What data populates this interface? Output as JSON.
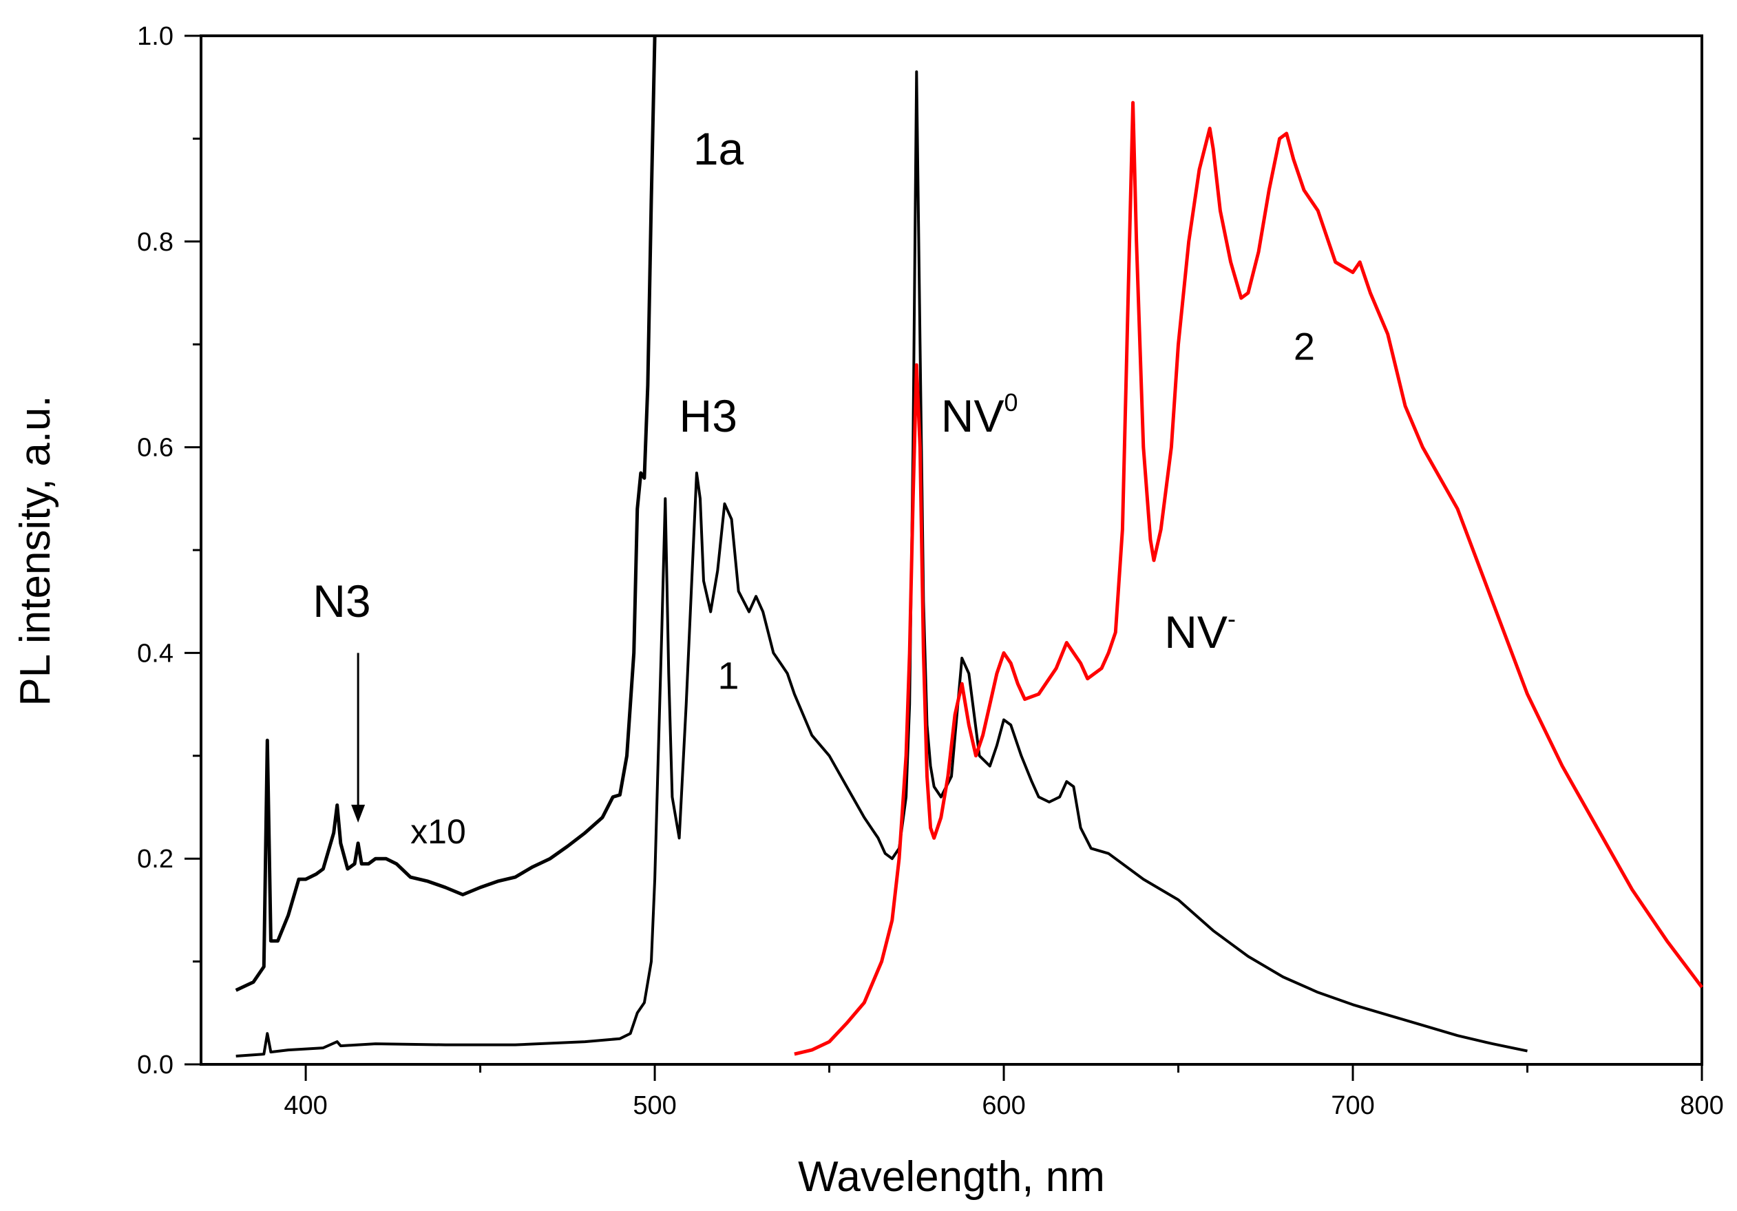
{
  "chart_data": {
    "type": "line",
    "xlabel": "Wavelength, nm",
    "ylabel": "PL intensity, a.u.",
    "xlim": [
      370,
      800
    ],
    "ylim": [
      0.0,
      1.0
    ],
    "xticks": [
      400,
      500,
      600,
      700,
      800
    ],
    "xtick_labels": [
      "400",
      "500",
      "600",
      "700",
      "800"
    ],
    "yticks": [
      0.0,
      0.2,
      0.4,
      0.6,
      0.8,
      1.0
    ],
    "ytick_labels": [
      "0.0",
      "0.2",
      "0.4",
      "0.6",
      "0.8",
      "1.0"
    ],
    "grid": false,
    "series": [
      {
        "name": "1a",
        "color": "#000000",
        "x": [
          380,
          385,
          388,
          389,
          390,
          392,
          395,
          398,
          400,
          403,
          405,
          408,
          409,
          410,
          412,
          414,
          415,
          416,
          418,
          420,
          423,
          426,
          430,
          435,
          440,
          445,
          450,
          455,
          460,
          465,
          470,
          475,
          480,
          485,
          488,
          490,
          492,
          494,
          495,
          496,
          497,
          498,
          499,
          500
        ],
        "y": [
          0.072,
          0.08,
          0.095,
          0.315,
          0.12,
          0.12,
          0.145,
          0.18,
          0.18,
          0.185,
          0.19,
          0.225,
          0.252,
          0.215,
          0.19,
          0.195,
          0.215,
          0.195,
          0.195,
          0.2,
          0.2,
          0.195,
          0.182,
          0.178,
          0.172,
          0.165,
          0.172,
          0.178,
          0.182,
          0.192,
          0.2,
          0.212,
          0.225,
          0.24,
          0.26,
          0.262,
          0.3,
          0.4,
          0.54,
          0.575,
          0.57,
          0.66,
          0.84,
          1.0
        ]
      },
      {
        "name": "1",
        "color": "#000000",
        "x": [
          380,
          388,
          389,
          390,
          395,
          405,
          409,
          410,
          415,
          420,
          440,
          460,
          480,
          490,
          493,
          495,
          497,
          499,
          500,
          501,
          502,
          503,
          504,
          505,
          507,
          509,
          511,
          512,
          513,
          514,
          516,
          518,
          520,
          522,
          524,
          527,
          529,
          531,
          534,
          536,
          538,
          540,
          545,
          550,
          555,
          560,
          564,
          566,
          568,
          570,
          572,
          573,
          574,
          575,
          576,
          577,
          578,
          579,
          580,
          582,
          585,
          588,
          590,
          593,
          596,
          598,
          600,
          602,
          605,
          608,
          610,
          613,
          616,
          618,
          620,
          622,
          625,
          630,
          640,
          650,
          660,
          670,
          680,
          690,
          700,
          710,
          720,
          730,
          740,
          750
        ],
        "y": [
          0.008,
          0.01,
          0.03,
          0.012,
          0.014,
          0.016,
          0.022,
          0.018,
          0.019,
          0.02,
          0.019,
          0.019,
          0.022,
          0.025,
          0.03,
          0.05,
          0.06,
          0.1,
          0.18,
          0.3,
          0.42,
          0.55,
          0.38,
          0.26,
          0.22,
          0.35,
          0.5,
          0.575,
          0.55,
          0.47,
          0.44,
          0.48,
          0.545,
          0.53,
          0.46,
          0.44,
          0.455,
          0.44,
          0.4,
          0.39,
          0.38,
          0.36,
          0.32,
          0.3,
          0.27,
          0.24,
          0.22,
          0.205,
          0.2,
          0.21,
          0.26,
          0.35,
          0.6,
          0.965,
          0.7,
          0.45,
          0.33,
          0.29,
          0.27,
          0.26,
          0.28,
          0.395,
          0.38,
          0.3,
          0.29,
          0.31,
          0.335,
          0.33,
          0.3,
          0.275,
          0.26,
          0.255,
          0.26,
          0.275,
          0.27,
          0.23,
          0.21,
          0.205,
          0.18,
          0.16,
          0.13,
          0.105,
          0.085,
          0.07,
          0.058,
          0.048,
          0.038,
          0.028,
          0.02,
          0.013
        ]
      },
      {
        "name": "2",
        "color": "#ff0000",
        "x": [
          540,
          545,
          550,
          555,
          560,
          565,
          568,
          570,
          572,
          573,
          574,
          575,
          576,
          577,
          578,
          579,
          580,
          582,
          584,
          586,
          588,
          590,
          592,
          594,
          596,
          598,
          600,
          602,
          604,
          606,
          610,
          615,
          618,
          620,
          622,
          624,
          628,
          630,
          632,
          634,
          636,
          637,
          638,
          640,
          642,
          643,
          645,
          648,
          650,
          653,
          656,
          659,
          660,
          662,
          665,
          668,
          670,
          673,
          676,
          679,
          681,
          683,
          686,
          690,
          695,
          700,
          702,
          705,
          710,
          715,
          720,
          730,
          740,
          750,
          760,
          770,
          780,
          790,
          800
        ],
        "y": [
          0.01,
          0.014,
          0.022,
          0.04,
          0.06,
          0.1,
          0.14,
          0.2,
          0.3,
          0.4,
          0.55,
          0.68,
          0.6,
          0.4,
          0.28,
          0.23,
          0.22,
          0.24,
          0.28,
          0.34,
          0.37,
          0.33,
          0.3,
          0.32,
          0.35,
          0.38,
          0.4,
          0.39,
          0.37,
          0.355,
          0.36,
          0.385,
          0.41,
          0.4,
          0.39,
          0.375,
          0.385,
          0.4,
          0.42,
          0.52,
          0.8,
          0.935,
          0.8,
          0.6,
          0.51,
          0.49,
          0.52,
          0.6,
          0.7,
          0.8,
          0.87,
          0.91,
          0.89,
          0.83,
          0.78,
          0.745,
          0.75,
          0.79,
          0.85,
          0.9,
          0.905,
          0.88,
          0.85,
          0.83,
          0.78,
          0.77,
          0.78,
          0.75,
          0.71,
          0.64,
          0.6,
          0.54,
          0.45,
          0.36,
          0.29,
          0.23,
          0.17,
          0.12,
          0.075
        ]
      }
    ],
    "annotations": [
      {
        "text": "1a",
        "x": 511,
        "y": 0.875
      },
      {
        "text": "H3",
        "x": 507,
        "y": 0.615
      },
      {
        "text": "N3",
        "x": 402,
        "y": 0.435
      },
      {
        "text": "x10",
        "x": 430,
        "y": 0.215
      },
      {
        "text": "1",
        "x": 518,
        "y": 0.365
      },
      {
        "text": "NV",
        "sup": "0",
        "x": 582,
        "y": 0.615
      },
      {
        "text": "NV",
        "sup": "-",
        "x": 646,
        "y": 0.405
      },
      {
        "text": "2",
        "x": 683,
        "y": 0.685
      }
    ],
    "arrow": {
      "x": 415,
      "y_from": 0.4,
      "y_to": 0.235
    }
  }
}
